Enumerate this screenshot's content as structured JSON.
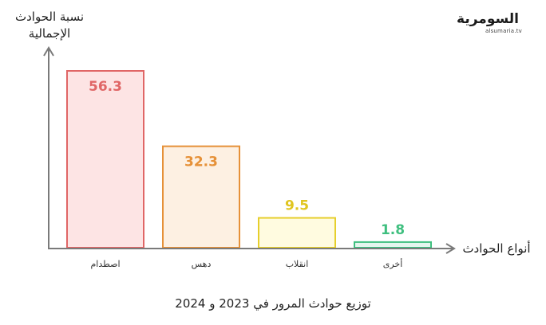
{
  "logo": {
    "name": "السومرية",
    "url": "alsumaria.tv"
  },
  "caption": "توزيع حوادث المرور في 2023 و 2024",
  "chart_data": {
    "type": "bar",
    "ylabel": [
      "نسبة الحوادث",
      "الإجمالية"
    ],
    "xlabel": "أنواع الحوادث",
    "categories": [
      "اصطدام",
      "دهس",
      "انقلاب",
      "أخرى"
    ],
    "values": [
      56.3,
      32.3,
      9.5,
      1.8
    ],
    "value_labels": [
      "56.3",
      "32.3",
      "9.5",
      "1.8"
    ],
    "ylim": [
      0,
      60
    ],
    "grid": false,
    "colors": {
      "stroke": [
        "#e06666",
        "#e69138",
        "#e6cf2c",
        "#3fbf7f"
      ],
      "fill": [
        "#fde4e4",
        "#fdf0e2",
        "#fffbe0",
        "#e5f6ee"
      ],
      "label": [
        "#e06666",
        "#e69138",
        "#e0c520",
        "#3fbf7f"
      ]
    }
  }
}
